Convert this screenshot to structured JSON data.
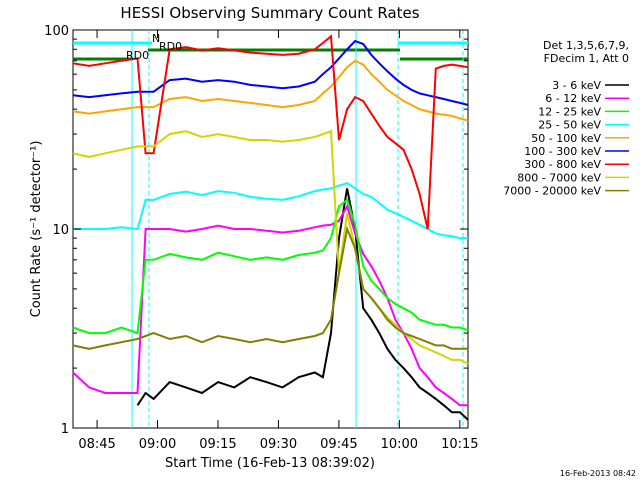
{
  "chart_data": {
    "type": "line",
    "title": "HESSI Observing Summary Count Rates",
    "xlabel": "Start Time (16-Feb-13 08:39:02)",
    "ylabel": "Count Rate (s⁻¹ detector⁻¹)",
    "yscale": "log",
    "ylim": [
      1,
      100
    ],
    "xlim_minutes": [
      0,
      98
    ],
    "y_ticks": [
      {
        "value": 1,
        "label": "1"
      },
      {
        "value": 10,
        "label": "10"
      },
      {
        "value": 100,
        "label": "100"
      }
    ],
    "x_ticks": [
      {
        "minute": 5.97,
        "label": "08:45"
      },
      {
        "minute": 20.97,
        "label": "09:00"
      },
      {
        "minute": 35.97,
        "label": "09:15"
      },
      {
        "minute": 50.97,
        "label": "09:30"
      },
      {
        "minute": 65.97,
        "label": "09:45"
      },
      {
        "minute": 80.97,
        "label": "10:00"
      },
      {
        "minute": 95.97,
        "label": "10:15"
      }
    ],
    "legend": {
      "placement": "right",
      "header": [
        "Det 1,3,5,6,7,9,",
        "FDecim 1, Att 0"
      ]
    },
    "x_minutes": [
      0,
      4,
      8,
      12,
      16,
      18,
      20,
      24,
      28,
      32,
      36,
      40,
      44,
      48,
      52,
      56,
      60,
      62,
      64,
      66,
      68,
      70,
      72,
      74,
      76,
      78,
      80,
      82,
      84,
      86,
      88,
      90,
      92,
      94,
      96,
      98
    ],
    "series": [
      {
        "name": "3 - 6 keV",
        "color": "#000000",
        "values": [
          null,
          null,
          null,
          null,
          1.3,
          1.5,
          1.4,
          1.7,
          1.6,
          1.5,
          1.7,
          1.6,
          1.8,
          1.7,
          1.6,
          1.8,
          1.9,
          1.8,
          3.0,
          9.0,
          16.0,
          10.0,
          4.0,
          3.5,
          3.0,
          2.5,
          2.2,
          2.0,
          1.8,
          1.6,
          1.5,
          1.4,
          1.3,
          1.2,
          1.2,
          1.1
        ]
      },
      {
        "name": "6 - 12 keV",
        "color": "#ff00ff",
        "values": [
          1.9,
          1.6,
          1.5,
          1.5,
          1.5,
          10.0,
          10.0,
          10.0,
          9.7,
          10.0,
          10.4,
          10.0,
          10.0,
          9.8,
          9.6,
          9.8,
          10.2,
          10.4,
          10.5,
          11.0,
          13.0,
          9.5,
          7.5,
          6.5,
          5.5,
          4.5,
          3.5,
          3.0,
          2.5,
          2.0,
          1.8,
          1.6,
          1.5,
          1.4,
          1.3,
          1.3
        ]
      },
      {
        "name": "12 - 25 keV",
        "color": "#00ff00",
        "values": [
          3.2,
          3.0,
          3.0,
          3.2,
          3.0,
          7.0,
          7.0,
          7.5,
          7.2,
          7.0,
          7.6,
          7.3,
          7.0,
          7.2,
          7.0,
          7.4,
          7.6,
          7.8,
          9.0,
          13.0,
          14.0,
          10.5,
          6.5,
          5.5,
          5.0,
          4.5,
          4.2,
          4.0,
          3.8,
          3.5,
          3.4,
          3.3,
          3.3,
          3.2,
          3.2,
          3.1
        ]
      },
      {
        "name": "25 - 50 keV",
        "color": "#00ffff",
        "values": [
          10.0,
          10.0,
          10.0,
          10.2,
          10.0,
          14.0,
          14.0,
          15.0,
          15.4,
          14.8,
          15.5,
          15.2,
          14.5,
          14.2,
          14.0,
          14.6,
          15.5,
          15.8,
          16.0,
          16.5,
          17.0,
          16.0,
          15.0,
          14.5,
          13.5,
          12.5,
          12.0,
          11.5,
          11.0,
          10.5,
          10.0,
          9.5,
          9.3,
          9.2,
          9.0,
          9.0
        ]
      },
      {
        "name": "50 - 100 keV",
        "color": "#ffa500",
        "values": [
          39.0,
          38.0,
          39.0,
          40.0,
          41.0,
          41.0,
          41.0,
          45.0,
          46.0,
          44.0,
          45.0,
          44.0,
          43.0,
          42.0,
          41.0,
          42.0,
          44.0,
          48.0,
          52.0,
          58.0,
          65.0,
          70.0,
          67.0,
          60.0,
          55.0,
          50.0,
          47.0,
          44.0,
          42.0,
          40.0,
          39.0,
          38.0,
          37.5,
          37.0,
          36.0,
          35.0
        ]
      },
      {
        "name": "100 - 300 keV",
        "color": "#0000ff",
        "values": [
          47.0,
          46.0,
          47.0,
          48.0,
          49.0,
          49.0,
          49.0,
          56.0,
          57.0,
          55.0,
          56.0,
          55.0,
          53.0,
          52.0,
          51.0,
          52.0,
          55.0,
          60.0,
          65.0,
          72.0,
          80.0,
          88.0,
          85.0,
          75.0,
          68.0,
          62.0,
          57.0,
          53.0,
          50.0,
          48.0,
          47.0,
          46.0,
          45.0,
          44.0,
          43.0,
          42.0
        ]
      },
      {
        "name": "300 - 800 keV",
        "color": "#ff0000",
        "values": [
          68.0,
          66.0,
          68.0,
          70.0,
          72.0,
          24.0,
          24.0,
          80.0,
          82.0,
          79.0,
          81.0,
          79.0,
          77.0,
          76.0,
          75.0,
          76.0,
          80.0,
          86.0,
          93.0,
          28.0,
          40.0,
          46.0,
          44.0,
          38.0,
          33.0,
          29.0,
          27.0,
          25.0,
          20.0,
          15.0,
          10.0,
          64.0,
          66.0,
          67.0,
          66.0,
          65.0
        ]
      },
      {
        "name": "800 - 7000 keV",
        "color": "#d4d400",
        "values": [
          24.0,
          23.0,
          24.0,
          25.0,
          26.0,
          26.0,
          26.0,
          30.0,
          31.0,
          29.0,
          30.0,
          29.0,
          28.0,
          28.0,
          27.5,
          28.0,
          29.0,
          30.0,
          31.0,
          6.0,
          12.0,
          8.0,
          5.0,
          4.5,
          4.0,
          3.6,
          3.3,
          3.0,
          2.8,
          2.6,
          2.5,
          2.4,
          2.3,
          2.2,
          2.2,
          2.1
        ]
      },
      {
        "name": "7000 - 20000 keV",
        "color": "#808000",
        "values": [
          2.6,
          2.5,
          2.6,
          2.7,
          2.8,
          2.9,
          3.0,
          2.8,
          2.9,
          2.7,
          2.9,
          2.8,
          2.7,
          2.8,
          2.7,
          2.8,
          2.9,
          3.0,
          3.5,
          6.0,
          10.0,
          8.0,
          5.0,
          4.5,
          4.0,
          3.5,
          3.2,
          3.0,
          2.9,
          2.8,
          2.7,
          2.6,
          2.6,
          2.5,
          2.5,
          2.5
        ]
      }
    ],
    "annotations": [
      {
        "text": "N",
        "color": "#00ffff"
      },
      {
        "text": "RD0",
        "color": "#008000"
      },
      {
        "text": "RD0",
        "color": "#008000"
      }
    ]
  },
  "timestamp": "16-Feb-2013 08:42"
}
